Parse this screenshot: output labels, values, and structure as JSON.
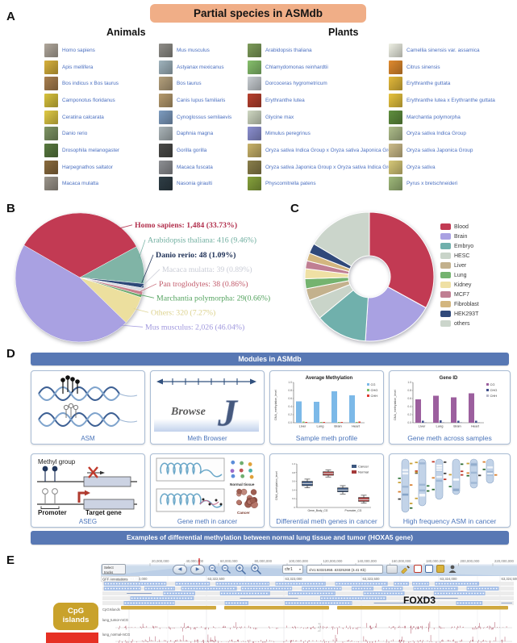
{
  "panel_labels": {
    "a": "A",
    "b": "B",
    "c": "C",
    "d": "D",
    "e": "E"
  },
  "header": {
    "title": "Partial species in ASMdb",
    "animals_label": "Animals",
    "plants_label": "Plants"
  },
  "theme": {
    "title_bg": "#f0ae87",
    "banner_bg": "#5878b4",
    "species_text": "#4a6fc0",
    "caption_blue": "#4a74ba",
    "cpg_gold": "#c9a22b",
    "cpg_bar": "#d0a83e",
    "red_box": "#e63024",
    "wiggle_red": "#a84055"
  },
  "species_columns": [
    {
      "group": "animals",
      "items": [
        {
          "name": "Homo sapiens",
          "thumb": "#b0a79b"
        },
        {
          "name": "Apis mellifera",
          "thumb": "#d8b13c"
        },
        {
          "name": "Bos indicus x Bos taurus",
          "thumb": "#a97f4f"
        },
        {
          "name": "Camponotus floridanus",
          "thumb": "#d8c23c"
        },
        {
          "name": "Ceratina calcarata",
          "thumb": "#e0ca45"
        },
        {
          "name": "Danio rerio",
          "thumb": "#7e9464"
        },
        {
          "name": "Drosophila melanogaster",
          "thumb": "#58793f"
        },
        {
          "name": "Harpegnathos saltator",
          "thumb": "#8a6b3e"
        },
        {
          "name": "Macaca mulatta",
          "thumb": "#9b958b"
        }
      ]
    },
    {
      "group": "animals",
      "items": [
        {
          "name": "Mus musculus",
          "thumb": "#8f8d88"
        },
        {
          "name": "Astyanax mexicanus",
          "thumb": "#9fb3bd"
        },
        {
          "name": "Bos taurus",
          "thumb": "#b4a07c"
        },
        {
          "name": "Canis lupus familiaris",
          "thumb": "#b59a6d"
        },
        {
          "name": "Cynoglossus semilaevis",
          "thumb": "#7d9cc0"
        },
        {
          "name": "Daphnia magna",
          "thumb": "#aab4b8"
        },
        {
          "name": "Gorilla gorilla",
          "thumb": "#4a4a48"
        },
        {
          "name": "Macaca fuscata",
          "thumb": "#8d8f93"
        },
        {
          "name": "Nasonia giraulti",
          "thumb": "#2f3e46"
        }
      ]
    },
    {
      "group": "plants",
      "items": [
        {
          "name": "Arabidopsis thaliana",
          "thumb": "#7d9c5a"
        },
        {
          "name": "Chlamydomonas reinhardtii",
          "thumb": "#86c06c"
        },
        {
          "name": "Dorcoceras hygrometricum",
          "thumb": "#c8cdd2"
        },
        {
          "name": "Erythranthe lutea",
          "thumb": "#b8402e"
        },
        {
          "name": "Glycine max",
          "thumb": "#cfd8c2"
        },
        {
          "name": "Mimulus peregrinus",
          "thumb": "#8b8fd0"
        },
        {
          "name": "Oryza sativa Indica Group x Oryza sativa Japonica Group",
          "thumb": "#c9b36a"
        },
        {
          "name": "Oryza sativa Japonica Group x Oryza sativa Indica Group",
          "thumb": "#8a7f4a"
        },
        {
          "name": "Physcomitrella patens",
          "thumb": "#86a23c"
        }
      ]
    },
    {
      "group": "plants",
      "items": [
        {
          "name": "Camellia sinensis var. assamica",
          "thumb": "#eef0e4"
        },
        {
          "name": "Citrus sinensis",
          "thumb": "#e08a2e"
        },
        {
          "name": "Erythranthe guttata",
          "thumb": "#e3b93a"
        },
        {
          "name": "Erythranthe lutea x Erythranthe guttata",
          "thumb": "#e7c33f"
        },
        {
          "name": "Marchantia polymorpha",
          "thumb": "#5f8f3e"
        },
        {
          "name": "Oryza sativa Indica Group",
          "thumb": "#aebd8a"
        },
        {
          "name": "Oryza sativa Japonica Group",
          "thumb": "#cdbd8a"
        },
        {
          "name": "Oryza sativa",
          "thumb": "#d6c878"
        },
        {
          "name": "Pyrus x bretschneideri",
          "thumb": "#9fb97a"
        }
      ]
    }
  ],
  "chart_data": [
    {
      "id": "species_pie",
      "type": "pie",
      "start_angle_deg": 300,
      "clockwise": true,
      "slices": [
        {
          "label": "Homo sapiens",
          "count": "1,484",
          "pct": 33.73,
          "color": "#c23a53",
          "label_color": "#b2314e",
          "bold": true,
          "text": "Homo sapiens: 1,484 (33.73%)"
        },
        {
          "label": "Arabidopsis thaliana",
          "count": "416",
          "pct": 9.46,
          "color": "#80b4a6",
          "label_color": "#6fae9f",
          "bold": false,
          "text": "Arabidopsis thaliana: 416 (9.46%)"
        },
        {
          "label": "Danio rerio",
          "count": "48",
          "pct": 1.09,
          "color": "#2d4878",
          "label_color": "#1c2f55",
          "bold": true,
          "text": "Danio rerio: 48 (1.09%)"
        },
        {
          "label": "Macaca mulatta",
          "count": "39",
          "pct": 0.89,
          "color": "#d9dbe2",
          "label_color": "#c9ccd6",
          "bold": false,
          "text": "Macaca mulatta: 39 (0.89%)"
        },
        {
          "label": "Pan troglodytes",
          "count": "38",
          "pct": 0.86,
          "color": "#c87f8d",
          "label_color": "#c15a6a",
          "bold": false,
          "text": "Pan troglodytes: 38 (0.86%)"
        },
        {
          "label": "Marchantia polymorpha",
          "count": "29",
          "pct": 0.66,
          "color": "#6aa96c",
          "label_color": "#52a25d",
          "bold": false,
          "text": "Marchantia polymorpha: 29(0.66%)"
        },
        {
          "label": "Others",
          "count": "320",
          "pct": 7.27,
          "color": "#ecdf9e",
          "label_color": "#dcd28d",
          "bold": false,
          "text": "Others: 320 (7.27%)"
        },
        {
          "label": "Mus musculus",
          "count": "2,026",
          "pct": 46.04,
          "color": "#a9a1e2",
          "label_color": "#9f97dd",
          "bold": false,
          "text": "Mus musculus: 2,026 (46.04%)"
        }
      ]
    },
    {
      "id": "tissue_donut",
      "type": "pie",
      "donut": true,
      "legend_position": "right",
      "start_angle_deg": 0,
      "clockwise": true,
      "slices": [
        {
          "label": "Blood",
          "pct": 33,
          "color": "#c23a53"
        },
        {
          "label": "Brain",
          "pct": 18,
          "color": "#a9a1e2"
        },
        {
          "label": "Embryo",
          "pct": 13,
          "color": "#70b0ac"
        },
        {
          "label": "HESC",
          "pct": 5,
          "color": "#c9d4c9"
        },
        {
          "label": "Liver",
          "pct": 3,
          "color": "#c3b18d"
        },
        {
          "label": "Lung",
          "pct": 2.5,
          "color": "#74b36f"
        },
        {
          "label": "Kidney",
          "pct": 2.5,
          "color": "#efe0a4"
        },
        {
          "label": "MCF7",
          "pct": 2,
          "color": "#c07f93"
        },
        {
          "label": "Fibroblast",
          "pct": 2,
          "color": "#d3b67f"
        },
        {
          "label": "HEK293T",
          "pct": 2.5,
          "color": "#30497a"
        },
        {
          "label": "others",
          "pct": 16.5,
          "color": "#cbd5cb"
        }
      ]
    },
    {
      "id": "avg_meth_bar",
      "type": "bar",
      "title": "Average Methylation",
      "ylabel": "DNA_methylation_level",
      "ylim": [
        0,
        1.0
      ],
      "yticks": [
        0.0,
        0.2,
        0.4,
        0.6,
        0.8,
        1.0
      ],
      "categories": [
        "Liver",
        "Lung",
        "Brain",
        "Heart"
      ],
      "series": [
        {
          "name": "CG",
          "color": "#7cb9e8",
          "values": [
            0.53,
            0.52,
            0.78,
            0.68
          ]
        },
        {
          "name": "CHG",
          "color": "#7cc06a",
          "values": [
            0.03,
            0.02,
            0.02,
            0.02
          ]
        },
        {
          "name": "CHH",
          "color": "#e03c31",
          "values": [
            0.02,
            0.02,
            0.02,
            0.03
          ]
        }
      ],
      "caption": "Sample meth profile"
    },
    {
      "id": "gene_meth_bar",
      "type": "bar",
      "title": "Gene ID",
      "ylabel": "DNA_methylation_level",
      "ylim": [
        0,
        1.0
      ],
      "yticks": [
        0.0,
        0.2,
        0.4,
        0.6,
        0.8,
        1.0
      ],
      "categories": [
        "Liver",
        "Lung",
        "Brain",
        "Heart"
      ],
      "series": [
        {
          "name": "CG",
          "color": "#9c5f9e",
          "values": [
            0.58,
            0.67,
            0.63,
            0.73
          ]
        },
        {
          "name": "CHG",
          "color": "#3f4f8c",
          "values": [
            0.05,
            0.06,
            0.05,
            0.05
          ]
        },
        {
          "name": "CHH",
          "color": "#b9b9c9",
          "values": [
            0.02,
            0.02,
            0.02,
            0.02
          ]
        }
      ],
      "caption": "Gene meth across samples"
    },
    {
      "id": "cancer_boxplot",
      "type": "boxplot",
      "ylabel": "DNA_methylation_level",
      "ylim": [
        0,
        1.0
      ],
      "categories": [
        "Gene_Body_CG",
        "Promoter_CG"
      ],
      "series": [
        {
          "name": "Cancer",
          "color": "#3d5880",
          "boxes": [
            {
              "lo": 0.45,
              "q1": 0.5,
              "med": 0.55,
              "q3": 0.6,
              "hi": 0.65
            },
            {
              "lo": 0.31,
              "q1": 0.36,
              "med": 0.4,
              "q3": 0.45,
              "hi": 0.5
            }
          ]
        },
        {
          "name": "Normal",
          "color": "#a43a3a",
          "boxes": [
            {
              "lo": 0.7,
              "q1": 0.74,
              "med": 0.78,
              "q3": 0.82,
              "hi": 0.86
            },
            {
              "lo": 0.1,
              "q1": 0.14,
              "med": 0.18,
              "q3": 0.23,
              "hi": 0.28
            }
          ]
        }
      ],
      "caption": "Differential meth genes in cancer"
    }
  ],
  "modules": {
    "banner": "Modules in ASMdb",
    "examples_banner": "Examples of differential methylation between normal lung tissue and tumor (HOXA5 gene)",
    "asm_caption": "ASM",
    "browser_caption": "Meth Browser",
    "browse_text": "Browse",
    "browse_j": "J",
    "aseg": {
      "methyl_group": "Methyl group",
      "promoter": "Promoter",
      "target_gene": "Target gene",
      "caption": "ASEG"
    },
    "cancer_meth": {
      "normal": "Normal tissue",
      "cancer": "Cancer",
      "caption": "Gene meth in cancer"
    },
    "asm_cancer_caption": "High frequency ASM in cancer"
  },
  "browser": {
    "select_tracks_line1": "Select",
    "select_tracks_line2": "tracks",
    "nav_back": "◀",
    "nav_fwd": "▶",
    "dropdown_glyph": "▾",
    "top_ruler": [
      "20,000,000",
      "40,000,000",
      "60,000,000",
      "80,000,000",
      "100,000,000",
      "120,000,000",
      "140,000,000",
      "160,000,000",
      "180,000,000",
      "200,000,000",
      "220,000,000"
    ],
    "chrom": "chr1",
    "location": "chr1:63321858..63325268 (3.41 Kb)",
    "sub_ruler": [
      "63,322,000",
      "63,322,500",
      "63,323,000",
      "63,323,500",
      "63,324,000",
      "63,324,500"
    ],
    "gff_label": "GFF Annotations",
    "cpg_track_label": "CpGIslands",
    "track1_label": "lung_tumor-mCG",
    "track2_label": "lung_normal-mCG",
    "gene_label": "FOXD3",
    "sidebar_cpg": "CpG islands",
    "axis_marks": [
      "1",
      "0",
      "-1"
    ]
  }
}
